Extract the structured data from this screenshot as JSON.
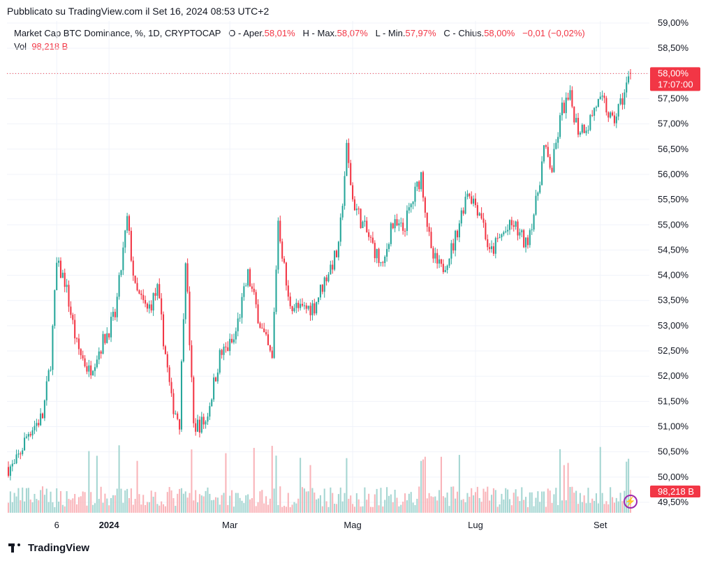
{
  "header": {
    "published": "Pubblicato su TradingView.com il Set 16, 2024 08:53 UTC+2"
  },
  "legend": {
    "symbol": "Market Cap BTC Dominance, %, 1D, CRYPTOCAP",
    "open_label": "O - Aper.",
    "open_value": "58,01%",
    "high_label": "H - Max.",
    "high_value": "58,07%",
    "low_label": "L - Min.",
    "low_value": "57,97%",
    "close_label": "C - Chius.",
    "close_value": "58,00%",
    "change": "−0,01 (−0,02%)",
    "vol_label": "Vol",
    "vol_value": "98,218 B"
  },
  "last_price": {
    "price": "58,00%",
    "countdown": "17:07:00",
    "volume": "98,218 B"
  },
  "footer": {
    "brand": "TradingView"
  },
  "colors": {
    "up": "#26a69a",
    "down": "#f23645",
    "up_vol": "#a5d6d2",
    "down_vol": "#f9b4b9",
    "grid": "#f0f3fa"
  },
  "chart_data": {
    "type": "candlestick",
    "title": "Market Cap BTC Dominance, %, 1D, CRYPTOCAP",
    "y_unit": "%",
    "ylim": [
      49.3,
      59.1
    ],
    "y_ticks": [
      "49,50%",
      "50,00%",
      "50,50%",
      "51,00%",
      "51,50%",
      "52,00%",
      "52,50%",
      "53,00%",
      "53,50%",
      "54,00%",
      "54,50%",
      "55,00%",
      "55,50%",
      "56,00%",
      "56,50%",
      "57,00%",
      "57,50%",
      "58,00%",
      "58,50%",
      "59,00%"
    ],
    "x_ticks": [
      "6",
      "2024",
      "Mar",
      "Mag",
      "Lug",
      "Set"
    ],
    "approx_close_path": [
      {
        "date": "2023-11-15",
        "value": 50.2
      },
      {
        "date": "2023-11-22",
        "value": 50.9
      },
      {
        "date": "2023-11-29",
        "value": 51.2
      },
      {
        "date": "2023-12-03",
        "value": 52.3
      },
      {
        "date": "2023-12-06",
        "value": 54.2
      },
      {
        "date": "2023-12-10",
        "value": 53.9
      },
      {
        "date": "2023-12-16",
        "value": 52.6
      },
      {
        "date": "2023-12-22",
        "value": 52.1
      },
      {
        "date": "2023-12-28",
        "value": 52.6
      },
      {
        "date": "2024-01-04",
        "value": 53.2
      },
      {
        "date": "2024-01-10",
        "value": 55.1
      },
      {
        "date": "2024-01-14",
        "value": 53.7
      },
      {
        "date": "2024-01-20",
        "value": 53.3
      },
      {
        "date": "2024-01-25",
        "value": 53.7
      },
      {
        "date": "2024-02-01",
        "value": 51.5
      },
      {
        "date": "2024-02-05",
        "value": 51.1
      },
      {
        "date": "2024-02-08",
        "value": 54.4
      },
      {
        "date": "2024-02-12",
        "value": 51.0
      },
      {
        "date": "2024-02-18",
        "value": 51.1
      },
      {
        "date": "2024-02-25",
        "value": 52.4
      },
      {
        "date": "2024-03-03",
        "value": 52.7
      },
      {
        "date": "2024-03-10",
        "value": 54.0
      },
      {
        "date": "2024-03-17",
        "value": 52.9
      },
      {
        "date": "2024-03-22",
        "value": 52.3
      },
      {
        "date": "2024-03-25",
        "value": 55.1
      },
      {
        "date": "2024-03-30",
        "value": 53.5
      },
      {
        "date": "2024-04-05",
        "value": 53.3
      },
      {
        "date": "2024-04-12",
        "value": 53.4
      },
      {
        "date": "2024-04-18",
        "value": 54.0
      },
      {
        "date": "2024-04-24",
        "value": 54.5
      },
      {
        "date": "2024-04-28",
        "value": 56.5
      },
      {
        "date": "2024-05-01",
        "value": 55.5
      },
      {
        "date": "2024-05-06",
        "value": 55.0
      },
      {
        "date": "2024-05-12",
        "value": 54.5
      },
      {
        "date": "2024-05-16",
        "value": 54.1
      },
      {
        "date": "2024-05-20",
        "value": 55.0
      },
      {
        "date": "2024-05-26",
        "value": 54.9
      },
      {
        "date": "2024-05-31",
        "value": 55.5
      },
      {
        "date": "2024-06-04",
        "value": 56.0
      },
      {
        "date": "2024-06-09",
        "value": 54.4
      },
      {
        "date": "2024-06-14",
        "value": 54.1
      },
      {
        "date": "2024-06-20",
        "value": 54.6
      },
      {
        "date": "2024-06-27",
        "value": 55.7
      },
      {
        "date": "2024-07-04",
        "value": 55.2
      },
      {
        "date": "2024-07-08",
        "value": 54.4
      },
      {
        "date": "2024-07-14",
        "value": 54.8
      },
      {
        "date": "2024-07-20",
        "value": 55.0
      },
      {
        "date": "2024-07-26",
        "value": 54.6
      },
      {
        "date": "2024-07-31",
        "value": 55.4
      },
      {
        "date": "2024-08-04",
        "value": 56.5
      },
      {
        "date": "2024-08-08",
        "value": 56.1
      },
      {
        "date": "2024-08-13",
        "value": 57.3
      },
      {
        "date": "2024-08-17",
        "value": 57.5
      },
      {
        "date": "2024-08-21",
        "value": 56.9
      },
      {
        "date": "2024-08-26",
        "value": 57.0
      },
      {
        "date": "2024-08-30",
        "value": 57.4
      },
      {
        "date": "2024-09-03",
        "value": 57.4
      },
      {
        "date": "2024-09-07",
        "value": 57.0
      },
      {
        "date": "2024-09-12",
        "value": 57.5
      },
      {
        "date": "2024-09-16",
        "value": 58.0
      }
    ]
  }
}
